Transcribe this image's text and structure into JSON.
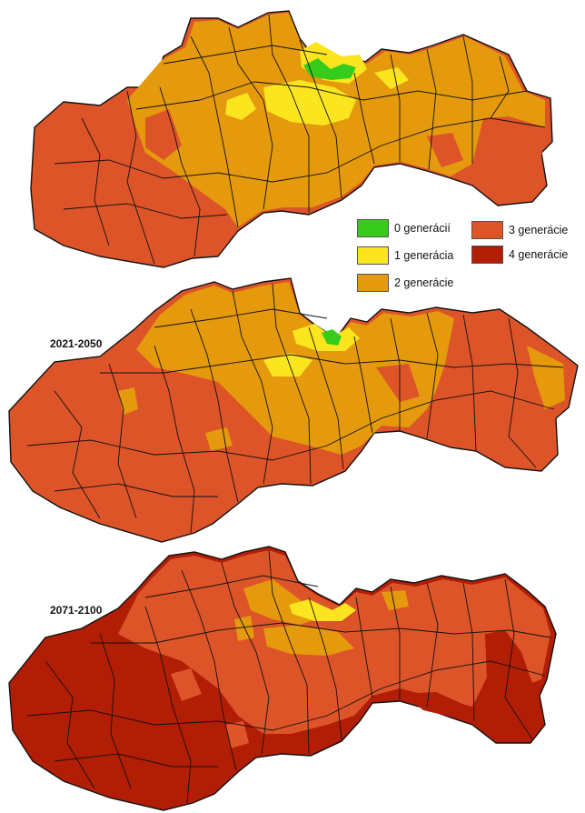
{
  "colors": {
    "generations_0": "#37cc1c",
    "generations_1": "#fbe51f",
    "generations_2": "#e49a0c",
    "generations_3": "#dd5429",
    "generations_4": "#b21d05",
    "boundary": "#111111"
  },
  "legend": [
    {
      "label": "0 generácií",
      "color": "#37cc1c"
    },
    {
      "label": "1 generácia",
      "color": "#fbe51f"
    },
    {
      "label": "2 generácie",
      "color": "#e49a0c"
    },
    {
      "label": "3 generácie",
      "color": "#dd5429"
    },
    {
      "label": "4 generácie",
      "color": "#b21d05"
    }
  ],
  "maps": [
    {
      "period_label": "",
      "dominant_class": "2 generácie"
    },
    {
      "period_label": "2021-2050",
      "dominant_class": "3 generácie"
    },
    {
      "period_label": "2071-2100",
      "dominant_class": "3 generácie"
    }
  ]
}
